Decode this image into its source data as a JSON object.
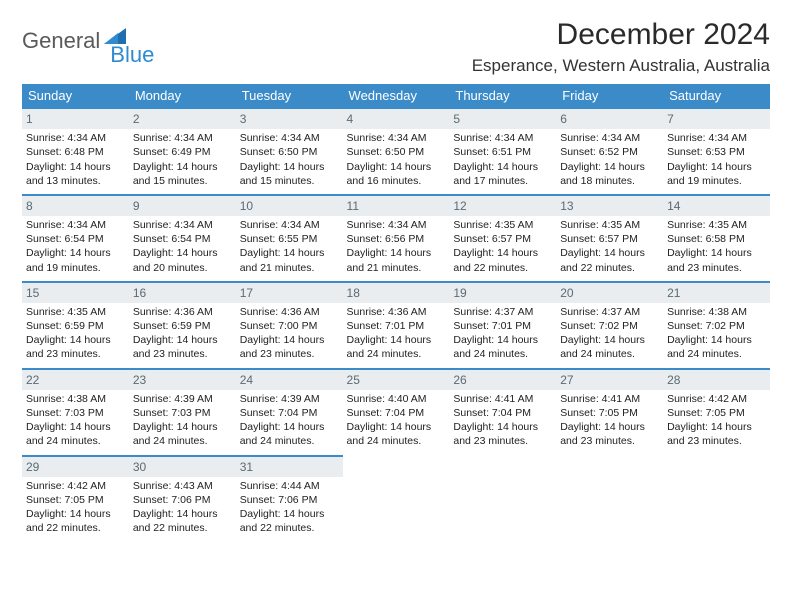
{
  "brand": {
    "general": "General",
    "blue": "Blue"
  },
  "title": "December 2024",
  "location": "Esperance, Western Australia, Australia",
  "colors": {
    "header_bg": "#3b8bc9",
    "header_text": "#ffffff",
    "daynum_bg": "#e9edef",
    "daynum_text": "#5b6a74",
    "row_border": "#3b8bc9",
    "brand_gray": "#5a5a5a",
    "brand_blue": "#2f8ad0"
  },
  "weekdays": [
    "Sunday",
    "Monday",
    "Tuesday",
    "Wednesday",
    "Thursday",
    "Friday",
    "Saturday"
  ],
  "weeks": [
    [
      {
        "n": "1",
        "sr": "Sunrise: 4:34 AM",
        "ss": "Sunset: 6:48 PM",
        "d1": "Daylight: 14 hours",
        "d2": "and 13 minutes."
      },
      {
        "n": "2",
        "sr": "Sunrise: 4:34 AM",
        "ss": "Sunset: 6:49 PM",
        "d1": "Daylight: 14 hours",
        "d2": "and 15 minutes."
      },
      {
        "n": "3",
        "sr": "Sunrise: 4:34 AM",
        "ss": "Sunset: 6:50 PM",
        "d1": "Daylight: 14 hours",
        "d2": "and 15 minutes."
      },
      {
        "n": "4",
        "sr": "Sunrise: 4:34 AM",
        "ss": "Sunset: 6:50 PM",
        "d1": "Daylight: 14 hours",
        "d2": "and 16 minutes."
      },
      {
        "n": "5",
        "sr": "Sunrise: 4:34 AM",
        "ss": "Sunset: 6:51 PM",
        "d1": "Daylight: 14 hours",
        "d2": "and 17 minutes."
      },
      {
        "n": "6",
        "sr": "Sunrise: 4:34 AM",
        "ss": "Sunset: 6:52 PM",
        "d1": "Daylight: 14 hours",
        "d2": "and 18 minutes."
      },
      {
        "n": "7",
        "sr": "Sunrise: 4:34 AM",
        "ss": "Sunset: 6:53 PM",
        "d1": "Daylight: 14 hours",
        "d2": "and 19 minutes."
      }
    ],
    [
      {
        "n": "8",
        "sr": "Sunrise: 4:34 AM",
        "ss": "Sunset: 6:54 PM",
        "d1": "Daylight: 14 hours",
        "d2": "and 19 minutes."
      },
      {
        "n": "9",
        "sr": "Sunrise: 4:34 AM",
        "ss": "Sunset: 6:54 PM",
        "d1": "Daylight: 14 hours",
        "d2": "and 20 minutes."
      },
      {
        "n": "10",
        "sr": "Sunrise: 4:34 AM",
        "ss": "Sunset: 6:55 PM",
        "d1": "Daylight: 14 hours",
        "d2": "and 21 minutes."
      },
      {
        "n": "11",
        "sr": "Sunrise: 4:34 AM",
        "ss": "Sunset: 6:56 PM",
        "d1": "Daylight: 14 hours",
        "d2": "and 21 minutes."
      },
      {
        "n": "12",
        "sr": "Sunrise: 4:35 AM",
        "ss": "Sunset: 6:57 PM",
        "d1": "Daylight: 14 hours",
        "d2": "and 22 minutes."
      },
      {
        "n": "13",
        "sr": "Sunrise: 4:35 AM",
        "ss": "Sunset: 6:57 PM",
        "d1": "Daylight: 14 hours",
        "d2": "and 22 minutes."
      },
      {
        "n": "14",
        "sr": "Sunrise: 4:35 AM",
        "ss": "Sunset: 6:58 PM",
        "d1": "Daylight: 14 hours",
        "d2": "and 23 minutes."
      }
    ],
    [
      {
        "n": "15",
        "sr": "Sunrise: 4:35 AM",
        "ss": "Sunset: 6:59 PM",
        "d1": "Daylight: 14 hours",
        "d2": "and 23 minutes."
      },
      {
        "n": "16",
        "sr": "Sunrise: 4:36 AM",
        "ss": "Sunset: 6:59 PM",
        "d1": "Daylight: 14 hours",
        "d2": "and 23 minutes."
      },
      {
        "n": "17",
        "sr": "Sunrise: 4:36 AM",
        "ss": "Sunset: 7:00 PM",
        "d1": "Daylight: 14 hours",
        "d2": "and 23 minutes."
      },
      {
        "n": "18",
        "sr": "Sunrise: 4:36 AM",
        "ss": "Sunset: 7:01 PM",
        "d1": "Daylight: 14 hours",
        "d2": "and 24 minutes."
      },
      {
        "n": "19",
        "sr": "Sunrise: 4:37 AM",
        "ss": "Sunset: 7:01 PM",
        "d1": "Daylight: 14 hours",
        "d2": "and 24 minutes."
      },
      {
        "n": "20",
        "sr": "Sunrise: 4:37 AM",
        "ss": "Sunset: 7:02 PM",
        "d1": "Daylight: 14 hours",
        "d2": "and 24 minutes."
      },
      {
        "n": "21",
        "sr": "Sunrise: 4:38 AM",
        "ss": "Sunset: 7:02 PM",
        "d1": "Daylight: 14 hours",
        "d2": "and 24 minutes."
      }
    ],
    [
      {
        "n": "22",
        "sr": "Sunrise: 4:38 AM",
        "ss": "Sunset: 7:03 PM",
        "d1": "Daylight: 14 hours",
        "d2": "and 24 minutes."
      },
      {
        "n": "23",
        "sr": "Sunrise: 4:39 AM",
        "ss": "Sunset: 7:03 PM",
        "d1": "Daylight: 14 hours",
        "d2": "and 24 minutes."
      },
      {
        "n": "24",
        "sr": "Sunrise: 4:39 AM",
        "ss": "Sunset: 7:04 PM",
        "d1": "Daylight: 14 hours",
        "d2": "and 24 minutes."
      },
      {
        "n": "25",
        "sr": "Sunrise: 4:40 AM",
        "ss": "Sunset: 7:04 PM",
        "d1": "Daylight: 14 hours",
        "d2": "and 24 minutes."
      },
      {
        "n": "26",
        "sr": "Sunrise: 4:41 AM",
        "ss": "Sunset: 7:04 PM",
        "d1": "Daylight: 14 hours",
        "d2": "and 23 minutes."
      },
      {
        "n": "27",
        "sr": "Sunrise: 4:41 AM",
        "ss": "Sunset: 7:05 PM",
        "d1": "Daylight: 14 hours",
        "d2": "and 23 minutes."
      },
      {
        "n": "28",
        "sr": "Sunrise: 4:42 AM",
        "ss": "Sunset: 7:05 PM",
        "d1": "Daylight: 14 hours",
        "d2": "and 23 minutes."
      }
    ],
    [
      {
        "n": "29",
        "sr": "Sunrise: 4:42 AM",
        "ss": "Sunset: 7:05 PM",
        "d1": "Daylight: 14 hours",
        "d2": "and 22 minutes."
      },
      {
        "n": "30",
        "sr": "Sunrise: 4:43 AM",
        "ss": "Sunset: 7:06 PM",
        "d1": "Daylight: 14 hours",
        "d2": "and 22 minutes."
      },
      {
        "n": "31",
        "sr": "Sunrise: 4:44 AM",
        "ss": "Sunset: 7:06 PM",
        "d1": "Daylight: 14 hours",
        "d2": "and 22 minutes."
      },
      null,
      null,
      null,
      null
    ]
  ]
}
